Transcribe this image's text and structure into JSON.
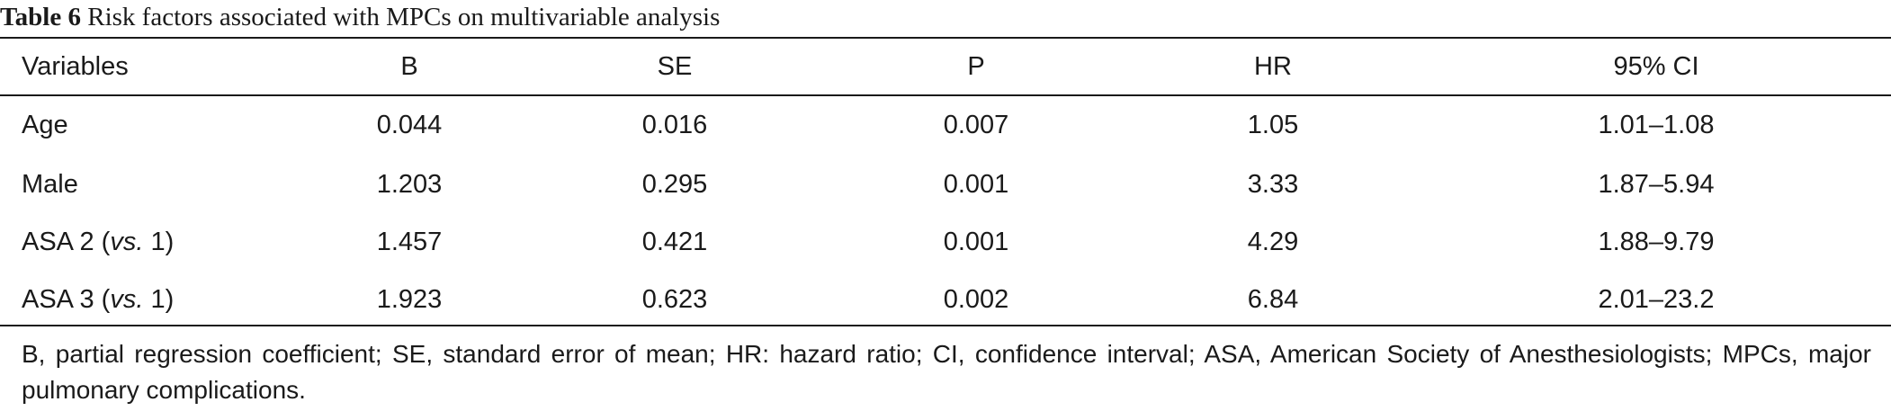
{
  "caption": {
    "label": "Table 6",
    "text": "Risk factors associated with MPCs on multivariable analysis"
  },
  "table": {
    "headers": [
      "Variables",
      "B",
      "SE",
      "P",
      "HR",
      "95% CI"
    ],
    "rows": [
      {
        "variable": "Age",
        "variable_suffix": "",
        "b": "0.044",
        "se": "0.016",
        "p": "0.007",
        "hr": "1.05",
        "ci": "1.01–1.08"
      },
      {
        "variable": "Male",
        "variable_suffix": "",
        "b": "1.203",
        "se": "0.295",
        "p": "0.001",
        "hr": "3.33",
        "ci": "1.87–5.94"
      },
      {
        "variable": "ASA 2 (",
        "variable_vs": "vs.",
        "variable_suffix": " 1)",
        "b": "1.457",
        "se": "0.421",
        "p": "0.001",
        "hr": "4.29",
        "ci": "1.88–9.79"
      },
      {
        "variable": "ASA 3 (",
        "variable_vs": "vs.",
        "variable_suffix": " 1)",
        "b": "1.923",
        "se": "0.623",
        "p": "0.002",
        "hr": "6.84",
        "ci": "2.01–23.2"
      }
    ]
  },
  "footnote": "B, partial regression coefficient; SE, standard error of mean; HR: hazard ratio; CI, confidence interval; ASA, American Society of Anesthesiologists; MPCs, major pulmonary complications."
}
